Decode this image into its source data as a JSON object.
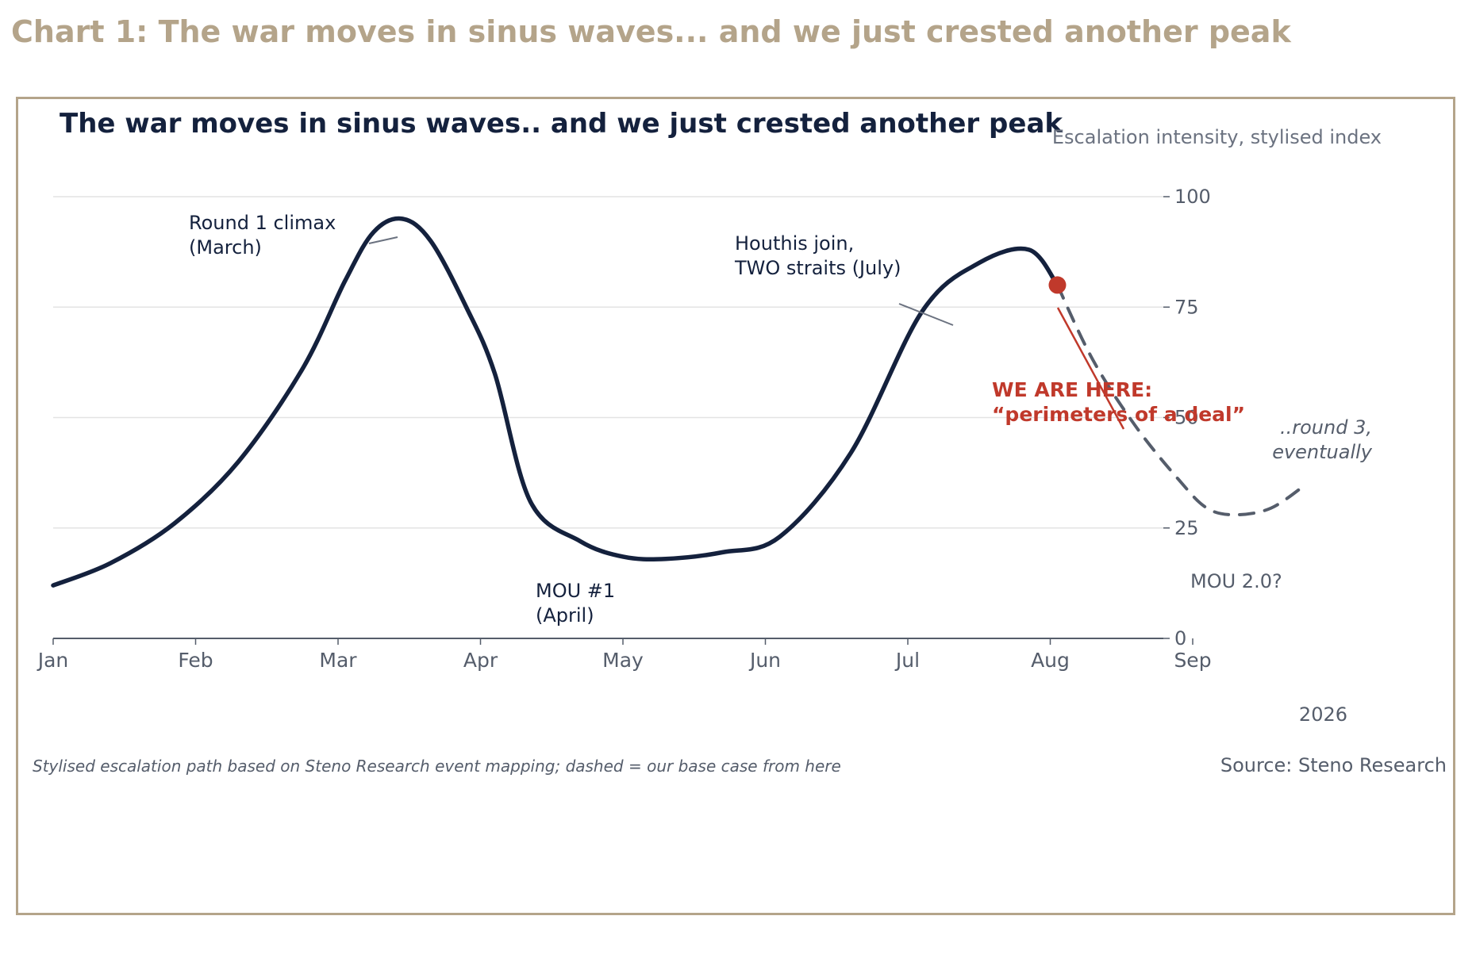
{
  "page_heading": "Chart 1: The war moves in sinus waves... and we just crested another peak",
  "chart_data": {
    "type": "line",
    "title": "The war moves in sinus waves.. and we just crested another peak",
    "subtitle": "Escalation intensity, stylised index",
    "xlabel": "",
    "ylabel": "",
    "year_label": "2026",
    "x_months": [
      "Jan",
      "Feb",
      "Mar",
      "Apr",
      "May",
      "Jun",
      "Jul",
      "Aug",
      "Sep"
    ],
    "x_range": [
      1,
      10
    ],
    "ylim": [
      0,
      110
    ],
    "y_ticks": [
      0,
      25,
      50,
      75,
      100
    ],
    "grid": "horizontal",
    "y_axis_side": "right",
    "series": [
      {
        "style": "solid",
        "color": "#14213d",
        "points": [
          {
            "x": 1.0,
            "y": 12
          },
          {
            "x": 1.4,
            "y": 17
          },
          {
            "x": 1.85,
            "y": 26
          },
          {
            "x": 2.3,
            "y": 40
          },
          {
            "x": 2.75,
            "y": 61
          },
          {
            "x": 3.05,
            "y": 81
          },
          {
            "x": 3.25,
            "y": 92
          },
          {
            "x": 3.45,
            "y": 95
          },
          {
            "x": 3.65,
            "y": 90
          },
          {
            "x": 3.9,
            "y": 75
          },
          {
            "x": 4.1,
            "y": 60
          },
          {
            "x": 4.35,
            "y": 31
          },
          {
            "x": 4.7,
            "y": 22
          },
          {
            "x": 5.0,
            "y": 18.5
          },
          {
            "x": 5.3,
            "y": 18
          },
          {
            "x": 5.7,
            "y": 19.5
          },
          {
            "x": 6.1,
            "y": 23
          },
          {
            "x": 6.6,
            "y": 42
          },
          {
            "x": 7.1,
            "y": 74
          },
          {
            "x": 7.5,
            "y": 85
          },
          {
            "x": 7.85,
            "y": 88
          },
          {
            "x": 8.05,
            "y": 80
          }
        ]
      },
      {
        "style": "dashed",
        "color": "#555d6b",
        "points": [
          {
            "x": 8.05,
            "y": 80
          },
          {
            "x": 8.3,
            "y": 63
          },
          {
            "x": 8.6,
            "y": 48
          },
          {
            "x": 8.9,
            "y": 36
          },
          {
            "x": 9.1,
            "y": 29.5
          },
          {
            "x": 9.3,
            "y": 28
          },
          {
            "x": 9.55,
            "y": 29.5
          },
          {
            "x": 9.8,
            "y": 35
          }
        ]
      }
    ],
    "current_point": {
      "x": 8.05,
      "y": 80,
      "color": "#c0392b"
    },
    "annotations": {
      "round1": [
        "Round 1 climax",
        "(March)"
      ],
      "mou1": [
        "MOU #1",
        "(April)"
      ],
      "houthis": [
        "Houthis join,",
        "TWO straits (July)"
      ],
      "here": [
        "WE ARE HERE:",
        "“perimeters of a deal”"
      ],
      "round3": [
        "..round 3,",
        "eventually"
      ],
      "mou2": "MOU 2.0?"
    },
    "footnote": "Stylised escalation path based on Steno Research event mapping; dashed = our base case from here",
    "source": "Source: Steno Research"
  }
}
